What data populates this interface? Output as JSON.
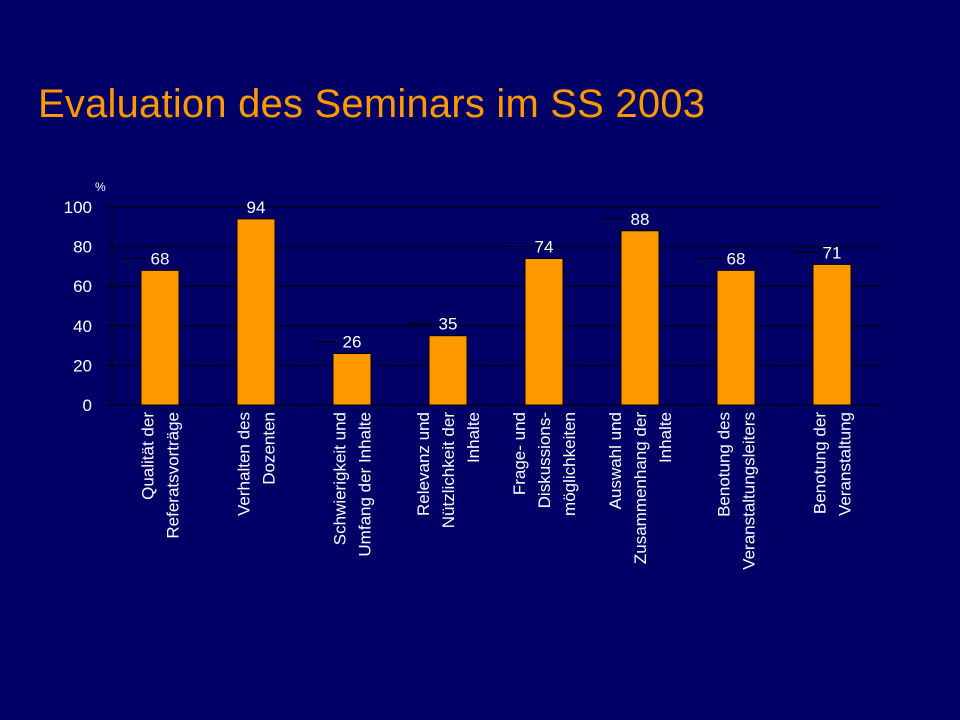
{
  "title": "Evaluation des Seminars im SS 2003",
  "colors": {
    "background": "#000066",
    "title": "#ff9900",
    "bar": "#ff9900",
    "text": "#ffffff"
  },
  "chart_data": {
    "type": "bar",
    "title": "Evaluation des Seminars im SS 2003",
    "ylabel": "%",
    "ylim": [
      0,
      100
    ],
    "yticks": [
      0,
      20,
      40,
      60,
      80,
      100
    ],
    "grid": true,
    "categories": [
      [
        "Qualität der",
        "Referatsvorträge"
      ],
      [
        "Verhalten des",
        "Dozenten"
      ],
      [
        "Schwierigkeit und",
        "Umfang der Inhalte"
      ],
      [
        "Relevanz und",
        "Nützlichkeit der",
        "Inhalte"
      ],
      [
        "Frage- und",
        "Diskussions-",
        "möglichkeiten"
      ],
      [
        "Auswahl und",
        "Zusammenhang der",
        "Inhalte"
      ],
      [
        "Benotung des",
        "Veranstaltungsleiters"
      ],
      [
        "Benotung der",
        "Veranstaltung"
      ]
    ],
    "values": [
      68,
      94,
      26,
      35,
      74,
      88,
      68,
      71
    ]
  }
}
